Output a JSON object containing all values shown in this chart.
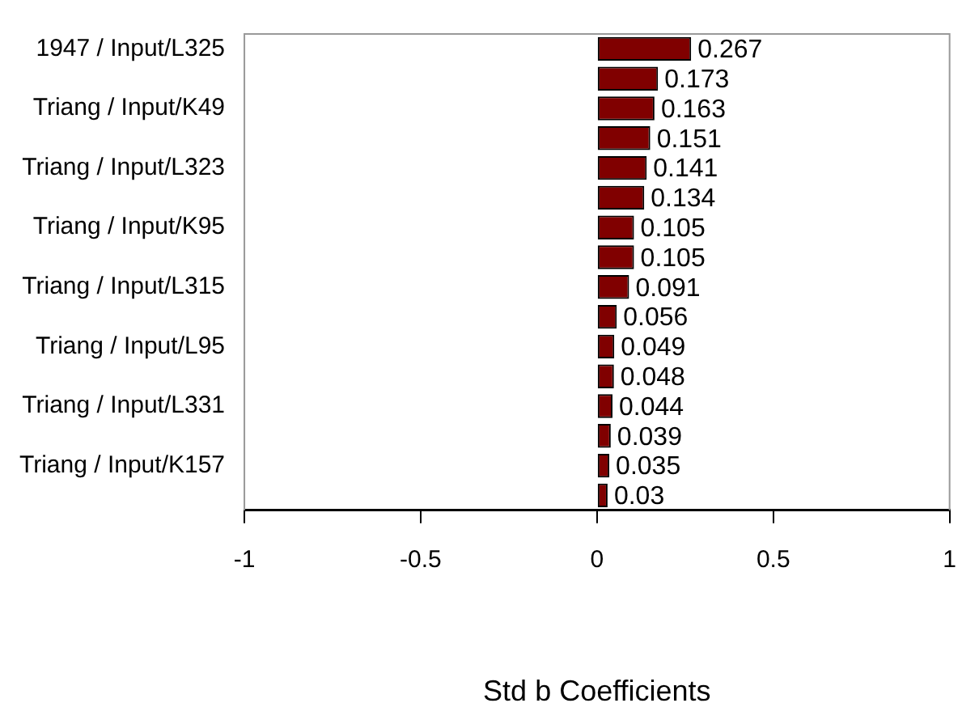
{
  "chart_data": {
    "type": "bar",
    "orientation": "horizontal",
    "xlabel": "Std b Coefficients",
    "categories": [
      "1947 / Input/L325",
      null,
      "Triang / Input/K49",
      null,
      "Triang / Input/L323",
      null,
      "Triang / Input/K95",
      null,
      "Triang / Input/L315",
      null,
      "Triang / Input/L95",
      null,
      "Triang / Input/L331",
      null,
      "Triang / Input/K157",
      null
    ],
    "values": [
      0.267,
      0.173,
      0.163,
      0.151,
      0.141,
      0.134,
      0.105,
      0.105,
      0.091,
      0.056,
      0.049,
      0.048,
      0.044,
      0.039,
      0.035,
      0.03
    ],
    "color": "#800000",
    "xlim": [
      -1,
      1
    ],
    "xticks": [
      -1,
      -0.5,
      0,
      0.5,
      1
    ],
    "grid": false,
    "legend": false,
    "data_labels": true
  }
}
